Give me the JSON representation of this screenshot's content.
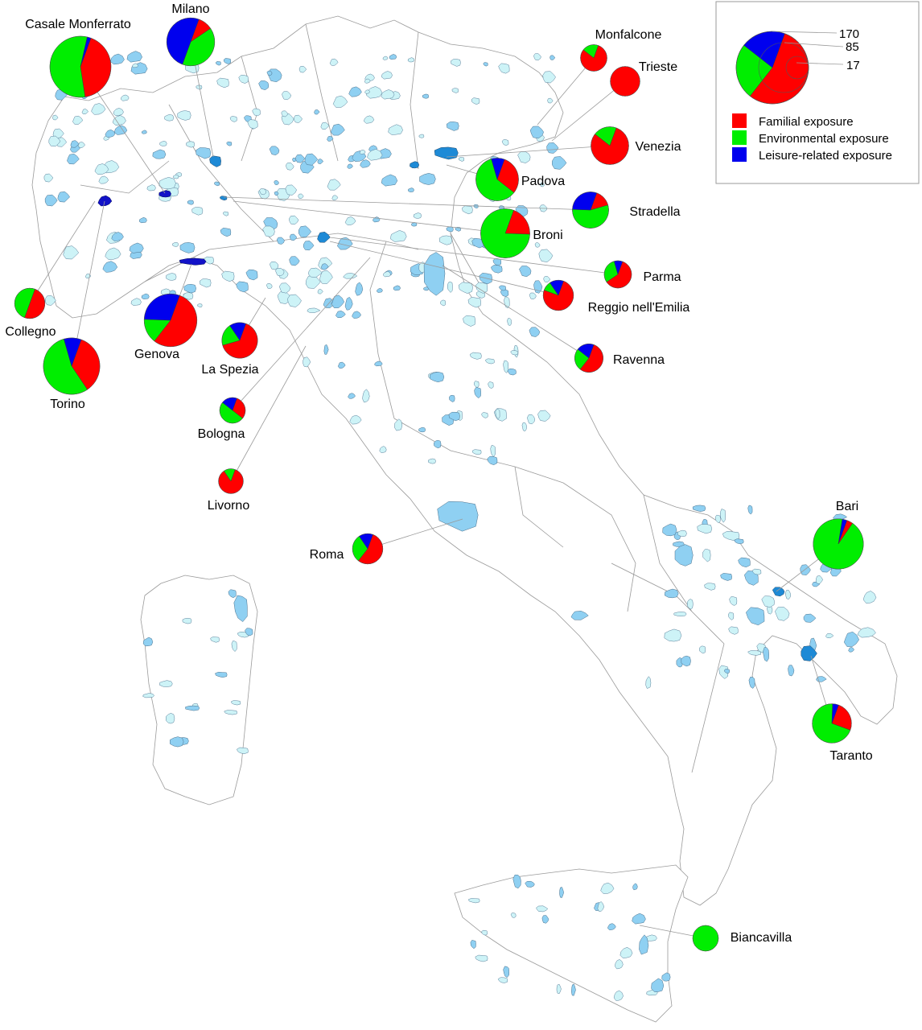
{
  "colors": {
    "familial": "#ff0000",
    "environmental": "#00ee00",
    "leisure": "#0000ee"
  },
  "legend": {
    "items": [
      {
        "label": "Familial exposure",
        "color": "#ff0000"
      },
      {
        "label": "Environmental exposure",
        "color": "#00ee00"
      },
      {
        "label": "Leisure-related exposure",
        "color": "#0000ee"
      }
    ],
    "scale": {
      "large": "170",
      "medium": "85",
      "small": "17"
    }
  },
  "chart_data": {
    "type": "pie",
    "series_names": [
      "Familial exposure",
      "Environmental exposure",
      "Leisure-related exposure"
    ],
    "cities": [
      {
        "name": "Casale Monferrato",
        "total": 170,
        "values": [
          0.42,
          0.56,
          0.02
        ]
      },
      {
        "name": "Milano",
        "total": 105,
        "values": [
          0.1,
          0.4,
          0.5
        ]
      },
      {
        "name": "Monfalcone",
        "total": 32,
        "values": [
          0.8,
          0.2,
          0.0
        ]
      },
      {
        "name": "Trieste",
        "total": 40,
        "values": [
          1.0,
          0.0,
          0.0
        ]
      },
      {
        "name": "Venezia",
        "total": 65,
        "values": [
          0.8,
          0.2,
          0.0
        ]
      },
      {
        "name": "Padova",
        "total": 83,
        "values": [
          0.3,
          0.6,
          0.1
        ]
      },
      {
        "name": "Stradella",
        "total": 60,
        "values": [
          0.15,
          0.55,
          0.3
        ]
      },
      {
        "name": "Broni",
        "total": 110,
        "values": [
          0.2,
          0.8,
          0.0
        ]
      },
      {
        "name": "Parma",
        "total": 34,
        "values": [
          0.6,
          0.3,
          0.1
        ]
      },
      {
        "name": "Reggio nell'Emilia",
        "total": 42,
        "values": [
          0.75,
          0.1,
          0.15
        ]
      },
      {
        "name": "Ravenna",
        "total": 37,
        "values": [
          0.55,
          0.25,
          0.2
        ]
      },
      {
        "name": "Collegno",
        "total": 42,
        "values": [
          0.5,
          0.5,
          0.0
        ]
      },
      {
        "name": "Genova",
        "total": 127,
        "values": [
          0.55,
          0.15,
          0.3
        ]
      },
      {
        "name": "La Spezia",
        "total": 58,
        "values": [
          0.65,
          0.2,
          0.15
        ]
      },
      {
        "name": "Torino",
        "total": 145,
        "values": [
          0.35,
          0.55,
          0.1
        ]
      },
      {
        "name": "Bologna",
        "total": 30,
        "values": [
          0.3,
          0.5,
          0.2
        ]
      },
      {
        "name": "Livorno",
        "total": 28,
        "values": [
          0.85,
          0.15,
          0.0
        ]
      },
      {
        "name": "Roma",
        "total": 42,
        "values": [
          0.55,
          0.3,
          0.15
        ]
      },
      {
        "name": "Bari",
        "total": 115,
        "values": [
          0.04,
          0.93,
          0.03
        ]
      },
      {
        "name": "Taranto",
        "total": 70,
        "values": [
          0.25,
          0.7,
          0.05
        ]
      },
      {
        "name": "Biancavilla",
        "total": 30,
        "values": [
          0.0,
          1.0,
          0.0
        ]
      }
    ]
  }
}
